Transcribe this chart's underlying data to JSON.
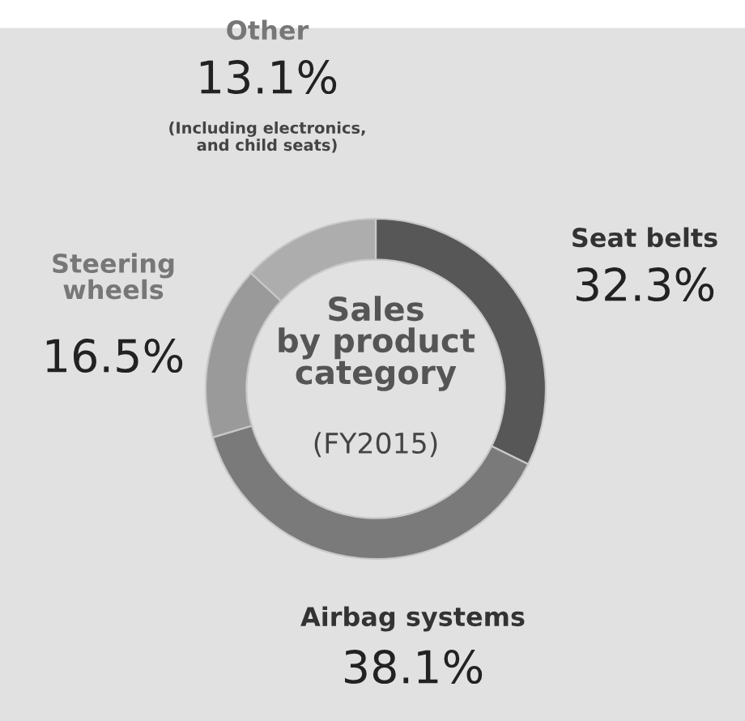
{
  "chart_data": {
    "type": "donut",
    "title": "Sales\nby product\ncategory",
    "subtitle": "(FY2015)",
    "categories": [
      "Seat belts",
      "Airbag systems",
      "Steering\nwheels",
      "Other"
    ],
    "values": [
      32.3,
      38.1,
      16.5,
      13.1
    ],
    "colors": [
      "#575757",
      "#7a7a7a",
      "#9a9a9a",
      "#adadad"
    ],
    "value_labels": [
      "32.3%",
      "38.1%",
      "16.5%",
      "13.1%"
    ],
    "annotations": [
      "(Including electronics,\nand child seats)"
    ]
  }
}
